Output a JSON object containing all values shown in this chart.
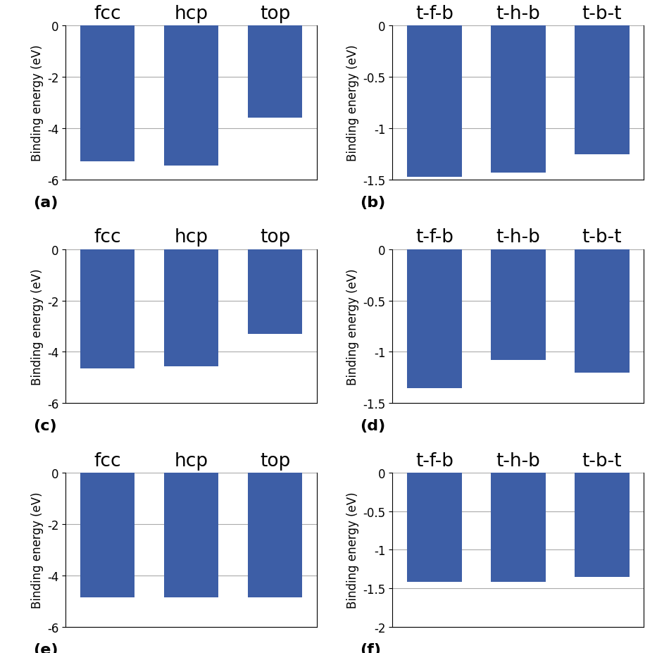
{
  "panels": [
    {
      "label": "(a)",
      "categories": [
        "fcc",
        "hcp",
        "top"
      ],
      "values": [
        -5.3,
        -5.45,
        -3.6
      ],
      "ylim": [
        -6,
        0
      ],
      "yticks": [
        0,
        -2,
        -4,
        -6
      ],
      "ylabel": "Binding energy (eV)"
    },
    {
      "label": "(b)",
      "categories": [
        "t-f-b",
        "t-h-b",
        "t-b-t"
      ],
      "values": [
        -1.47,
        -1.43,
        -1.25
      ],
      "ylim": [
        -1.5,
        0
      ],
      "yticks": [
        0,
        -0.5,
        -1.0,
        -1.5
      ],
      "ylabel": "Binding energy (eV)"
    },
    {
      "label": "(c)",
      "categories": [
        "fcc",
        "hcp",
        "top"
      ],
      "values": [
        -4.65,
        -4.55,
        -3.3
      ],
      "ylim": [
        -6,
        0
      ],
      "yticks": [
        0,
        -2,
        -4,
        -6
      ],
      "ylabel": "Binding energy (eV)"
    },
    {
      "label": "(d)",
      "categories": [
        "t-f-b",
        "t-h-b",
        "t-b-t"
      ],
      "values": [
        -1.35,
        -1.08,
        -1.2
      ],
      "ylim": [
        -1.5,
        0
      ],
      "yticks": [
        0,
        -0.5,
        -1.0,
        -1.5
      ],
      "ylabel": "Binding energy (eV)"
    },
    {
      "label": "(e)",
      "categories": [
        "fcc",
        "hcp",
        "top"
      ],
      "values": [
        -4.85,
        -4.85,
        -4.85
      ],
      "ylim": [
        -6,
        0
      ],
      "yticks": [
        0,
        -2,
        -4,
        -6
      ],
      "ylabel": "Binding energy (eV)"
    },
    {
      "label": "(f)",
      "categories": [
        "t-f-b",
        "t-h-b",
        "t-b-t"
      ],
      "values": [
        -1.42,
        -1.42,
        -1.35
      ],
      "ylim": [
        -2,
        0
      ],
      "yticks": [
        0,
        -0.5,
        -1.0,
        -1.5,
        -2.0
      ],
      "ylabel": "Binding energy (eV)"
    }
  ],
  "bar_color": "#3d5ea6",
  "bar_width": 0.65,
  "grid_color": "#aaaaaa",
  "label_fontsize": 16,
  "tick_fontsize": 12,
  "ylabel_fontsize": 12,
  "cat_fontsize": 19
}
